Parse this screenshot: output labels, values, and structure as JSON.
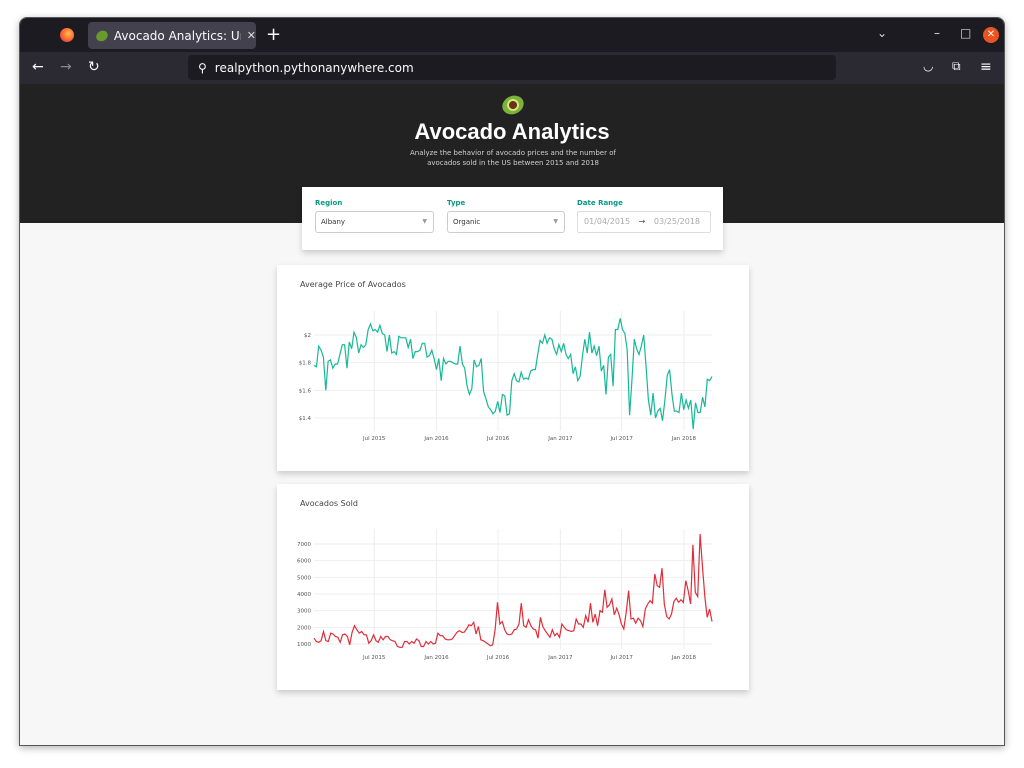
{
  "browser": {
    "tab_title": "Avocado Analytics: Understand Your Avocados!",
    "url": "realpython.pythonanywhere.com",
    "new_tab": "+",
    "tab_close": "✕"
  },
  "header": {
    "title": "Avocado Analytics",
    "description": "Analyze the behavior of avocado prices and the number of avocados sold in the US between 2015 and 2018"
  },
  "filters": {
    "region_label": "Region",
    "region_value": "Albany",
    "type_label": "Type",
    "type_value": "Organic",
    "date_label": "Date Range",
    "start_date": "01/04/2015",
    "end_date": "03/25/2018",
    "arrow": "→"
  },
  "chart_data": [
    {
      "type": "line",
      "title": "Average Price of Avocados",
      "color": "#17B897",
      "x_range": [
        "2015-01-04",
        "2018-03-25"
      ],
      "xticks": [
        "Jul 2015",
        "Jan 2016",
        "Jul 2016",
        "Jan 2017",
        "Jul 2017",
        "Jan 2018"
      ],
      "yticks": [
        "$1.4",
        "$1.6",
        "$1.8",
        "$2"
      ],
      "ylim": [
        1.3,
        2.15
      ],
      "grid": true,
      "values": [
        1.78,
        1.77,
        1.92,
        1.89,
        1.84,
        1.6,
        1.81,
        1.82,
        1.76,
        1.79,
        1.79,
        1.86,
        1.93,
        1.93,
        1.76,
        1.95,
        1.9,
        2.02,
        1.98,
        1.87,
        1.93,
        1.91,
        1.93,
        2.04,
        2.08,
        2.03,
        2.04,
        2.02,
        2.07,
        2.01,
        2.0,
        1.88,
        2.0,
        1.87,
        1.88,
        1.86,
        1.99,
        1.98,
        1.98,
        1.98,
        1.91,
        1.97,
        1.83,
        1.88,
        1.88,
        1.89,
        1.94,
        1.94,
        1.84,
        1.85,
        1.89,
        1.83,
        1.75,
        1.83,
        1.67,
        1.83,
        1.79,
        1.81,
        1.81,
        1.8,
        1.79,
        1.79,
        1.92,
        1.79,
        1.76,
        1.63,
        1.57,
        1.61,
        1.82,
        1.77,
        1.78,
        1.83,
        1.59,
        1.54,
        1.48,
        1.46,
        1.43,
        1.45,
        1.52,
        1.44,
        1.57,
        1.56,
        1.42,
        1.43,
        1.67,
        1.72,
        1.67,
        1.66,
        1.73,
        1.68,
        1.69,
        1.68,
        1.74,
        1.75,
        1.75,
        1.86,
        1.96,
        1.94,
        2.0,
        1.94,
        1.98,
        1.97,
        1.9,
        1.86,
        1.93,
        1.88,
        1.94,
        1.86,
        1.83,
        1.86,
        1.72,
        1.77,
        1.67,
        1.7,
        1.85,
        1.97,
        1.87,
        2.02,
        1.87,
        1.92,
        1.85,
        1.92,
        1.74,
        1.78,
        1.57,
        1.84,
        1.86,
        1.63,
        2.04,
        2.04,
        2.12,
        2.04,
        2.01,
        1.89,
        1.42,
        1.67,
        1.97,
        1.9,
        1.86,
        1.92,
        2.0,
        1.77,
        1.53,
        1.42,
        1.58,
        1.4,
        1.45,
        1.47,
        1.38,
        1.53,
        1.71,
        1.75,
        1.57,
        1.45,
        1.45,
        1.44,
        1.58,
        1.46,
        1.53,
        1.47,
        1.53,
        1.32,
        1.51,
        1.44,
        1.44,
        1.55,
        1.48,
        1.68,
        1.67,
        1.7
      ]
    },
    {
      "type": "line",
      "title": "Avocados Sold",
      "color": "#E12D39",
      "x_range": [
        "2015-01-04",
        "2018-03-25"
      ],
      "xticks": [
        "Jul 2015",
        "Jan 2016",
        "Jul 2016",
        "Jan 2017",
        "Jul 2017",
        "Jan 2018"
      ],
      "yticks": [
        "1000",
        "2000",
        "3000",
        "4000",
        "5000",
        "6000",
        "7000"
      ],
      "ylim": [
        500,
        7700
      ],
      "grid": true,
      "values": [
        1350,
        1150,
        1100,
        1200,
        1750,
        1200,
        1150,
        1650,
        1600,
        1450,
        1400,
        1100,
        1550,
        1600,
        1450,
        950,
        1700,
        2100,
        1850,
        1650,
        1750,
        1550,
        1550,
        1050,
        1200,
        1550,
        1200,
        1100,
        1450,
        1250,
        1450,
        1450,
        1250,
        1200,
        1150,
        850,
        800,
        800,
        1150,
        1150,
        1000,
        1150,
        1050,
        1300,
        1200,
        850,
        850,
        1150,
        1000,
        1150,
        1000,
        1050,
        1650,
        1500,
        1500,
        1300,
        1250,
        1250,
        1300,
        1500,
        1700,
        1800,
        1700,
        1700,
        1900,
        2150,
        2100,
        2300,
        1600,
        2050,
        1250,
        1200,
        1100,
        1000,
        900,
        950,
        1850,
        3500,
        2200,
        2350,
        1850,
        1600,
        1550,
        1600,
        1850,
        1900,
        2200,
        3450,
        2100,
        2000,
        2450,
        2100,
        1900,
        1850,
        1350,
        2600,
        2050,
        1800,
        1600,
        1400,
        1850,
        1500,
        1650,
        1400,
        2200,
        2000,
        1850,
        1800,
        1750,
        1800,
        2500,
        2200,
        2200,
        2000,
        2700,
        2300,
        3450,
        2300,
        2800,
        2100,
        3000,
        2900,
        4250,
        3200,
        3350,
        3700,
        2750,
        3150,
        2750,
        2200,
        1900,
        2900,
        4200,
        2500,
        2550,
        2250,
        2550,
        2400,
        2050,
        3100,
        3400,
        3600,
        3450,
        5200,
        4500,
        4400,
        5550,
        3400,
        2650,
        2500,
        2800,
        3550,
        3750,
        3500,
        3650,
        3500,
        4800,
        4200,
        3400,
        6950,
        4100,
        3850,
        7600,
        5600,
        3800,
        2600,
        3100,
        2350
      ]
    }
  ]
}
